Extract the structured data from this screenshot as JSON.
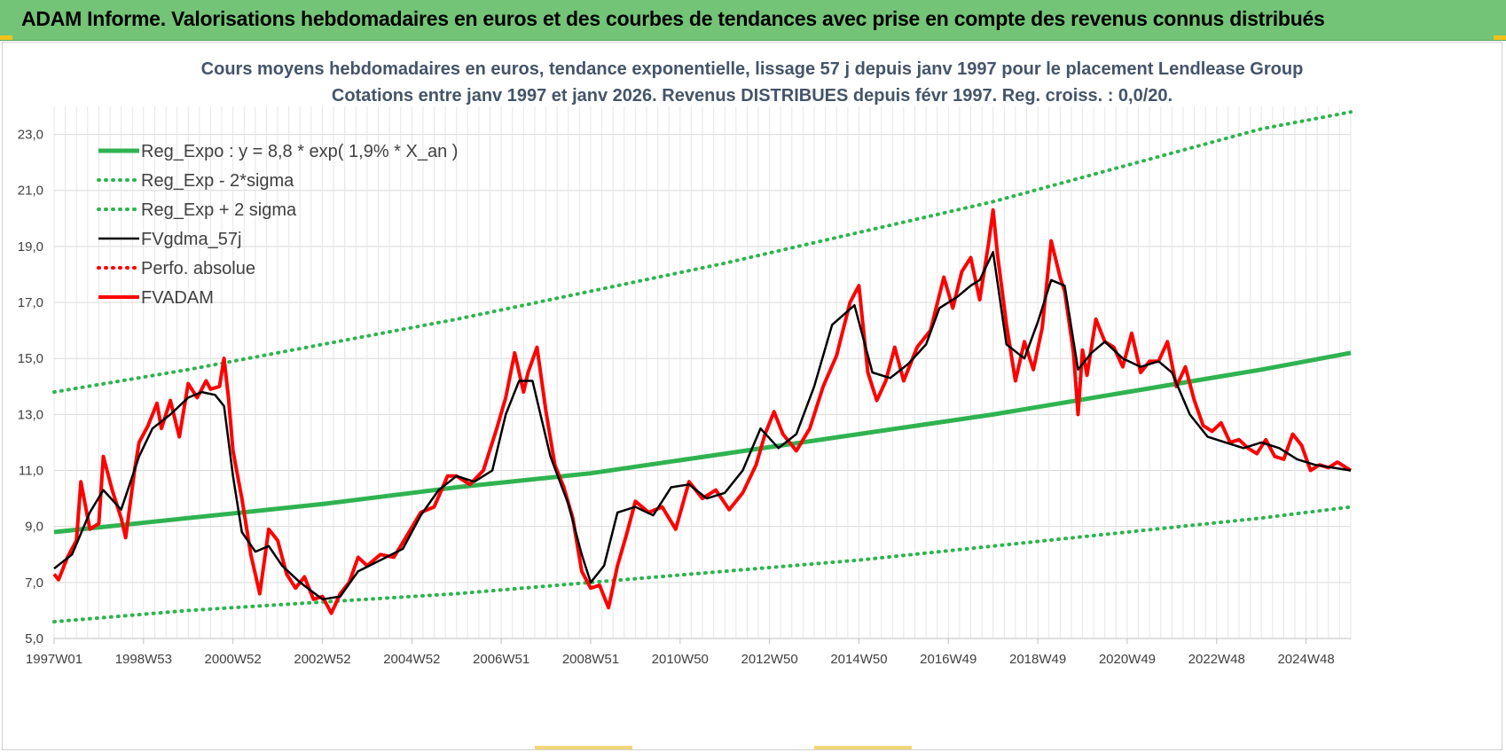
{
  "header": {
    "title": "ADAM Informe. Valorisations hebdomadaires en euros et des courbes de tendances avec prise en compte des revenus connus distribués"
  },
  "colors": {
    "header_bg": "#73c476",
    "trend_green": "#2fb350",
    "price_red": "#ff0000",
    "smoothed_black": "#000000",
    "title_text": "#44546a"
  },
  "chart_data": {
    "type": "line",
    "title": "Cours moyens hebdomadaires en euros, tendance exponentielle, lissage 57 j depuis janv 1997 pour le placement Lendlease Group",
    "subtitle": "Cotations entre janv 1997 et janv 2026. Revenus DISTRIBUES depuis févr 1997. Reg. croiss. : 0,0/20.",
    "xlabel": "",
    "ylabel": "",
    "xlim": [
      1997.0,
      2026.0
    ],
    "ylim": [
      5.0,
      24.0
    ],
    "grid": true,
    "legend_position": "top-left",
    "y_ticks": [
      "5,0",
      "7,0",
      "9,0",
      "11,0",
      "13,0",
      "15,0",
      "17,0",
      "19,0",
      "21,0",
      "23,0"
    ],
    "x_ticks": [
      {
        "label": "1997W01",
        "t": 1997.0
      },
      {
        "label": "1998W53",
        "t": 1999.0
      },
      {
        "label": "2000W52",
        "t": 2001.0
      },
      {
        "label": "2002W52",
        "t": 2003.0
      },
      {
        "label": "2004W52",
        "t": 2005.0
      },
      {
        "label": "2006W51",
        "t": 2007.0
      },
      {
        "label": "2008W51",
        "t": 2009.0
      },
      {
        "label": "2010W50",
        "t": 2011.0
      },
      {
        "label": "2012W50",
        "t": 2013.0
      },
      {
        "label": "2014W50",
        "t": 2015.0
      },
      {
        "label": "2016W49",
        "t": 2017.0
      },
      {
        "label": "2018W49",
        "t": 2019.0
      },
      {
        "label": "2020W49",
        "t": 2021.0
      },
      {
        "label": "2022W48",
        "t": 2023.0
      },
      {
        "label": "2024W48",
        "t": 2025.0
      }
    ],
    "series": [
      {
        "name": "Reg_Expo : y = 8,8 * exp( 1,9% *  X_an )",
        "style": "solid-thick",
        "color": "#2fb350",
        "x": [
          1997.0,
          2000.0,
          2003.0,
          2006.0,
          2009.0,
          2012.0,
          2015.0,
          2018.0,
          2021.0,
          2024.0,
          2026.0
        ],
        "y": [
          8.8,
          9.3,
          9.8,
          10.4,
          10.9,
          11.6,
          12.3,
          13.0,
          13.8,
          14.6,
          15.2
        ]
      },
      {
        "name": "Reg_Exp - 2*sigma",
        "style": "dotted",
        "color": "#2fb350",
        "x": [
          1997.0,
          2000.0,
          2003.0,
          2006.0,
          2009.0,
          2012.0,
          2015.0,
          2018.0,
          2021.0,
          2024.0,
          2026.0
        ],
        "y": [
          5.6,
          6.0,
          6.3,
          6.6,
          7.0,
          7.4,
          7.8,
          8.3,
          8.8,
          9.3,
          9.7
        ]
      },
      {
        "name": "Reg_Exp + 2 sigma",
        "style": "dotted",
        "color": "#2fb350",
        "x": [
          1997.0,
          2000.0,
          2003.0,
          2006.0,
          2009.0,
          2012.0,
          2015.0,
          2018.0,
          2021.0,
          2024.0,
          2026.0
        ],
        "y": [
          13.8,
          14.6,
          15.5,
          16.4,
          17.4,
          18.4,
          19.5,
          20.6,
          21.9,
          23.2,
          23.8
        ]
      },
      {
        "name": "FVgdma_57j",
        "style": "solid",
        "color": "#000000",
        "x": [
          1997.0,
          1997.4,
          1997.8,
          1998.1,
          1998.5,
          1998.9,
          1999.2,
          1999.6,
          2000.0,
          2000.3,
          2000.6,
          2000.8,
          2001.0,
          2001.2,
          2001.5,
          2001.8,
          2002.1,
          2002.5,
          2003.0,
          2003.4,
          2003.8,
          2004.3,
          2004.8,
          2005.2,
          2005.6,
          2006.0,
          2006.4,
          2006.8,
          2007.1,
          2007.4,
          2007.7,
          2008.1,
          2008.5,
          2008.8,
          2009.0,
          2009.3,
          2009.6,
          2010.0,
          2010.4,
          2010.8,
          2011.2,
          2011.6,
          2012.0,
          2012.4,
          2012.8,
          2013.2,
          2013.6,
          2014.0,
          2014.4,
          2014.9,
          2015.3,
          2015.7,
          2016.1,
          2016.5,
          2016.8,
          2017.2,
          2017.5,
          2017.7,
          2018.0,
          2018.3,
          2018.7,
          2019.0,
          2019.3,
          2019.6,
          2019.9,
          2020.2,
          2020.5,
          2020.9,
          2021.3,
          2021.7,
          2022.0,
          2022.4,
          2022.8,
          2023.2,
          2023.6,
          2024.0,
          2024.4,
          2024.8,
          2025.2,
          2025.6,
          2026.0
        ],
        "y": [
          7.5,
          8.0,
          9.5,
          10.3,
          9.6,
          11.5,
          12.5,
          13.0,
          13.6,
          13.8,
          13.7,
          13.3,
          10.8,
          8.8,
          8.1,
          8.3,
          7.6,
          7.0,
          6.4,
          6.5,
          7.4,
          7.8,
          8.2,
          9.4,
          10.3,
          10.8,
          10.6,
          11.0,
          13.0,
          14.2,
          14.2,
          11.5,
          9.8,
          8.0,
          7.0,
          7.6,
          9.5,
          9.7,
          9.4,
          10.4,
          10.5,
          10.0,
          10.2,
          11.0,
          12.5,
          11.8,
          12.3,
          14.0,
          16.2,
          16.9,
          14.5,
          14.3,
          14.8,
          15.5,
          16.8,
          17.2,
          17.6,
          17.8,
          18.8,
          15.5,
          15.0,
          16.3,
          17.8,
          17.6,
          14.6,
          15.2,
          15.6,
          15.0,
          14.7,
          14.9,
          14.5,
          13.0,
          12.2,
          12.0,
          11.8,
          12.0,
          11.8,
          11.4,
          11.2,
          11.1,
          11.0
        ]
      },
      {
        "name": "Perfo. absolue",
        "style": "dotted",
        "color": "#ff0000",
        "x": [],
        "y": []
      },
      {
        "name": "FVADAM",
        "style": "solid-thick",
        "color": "#ff0000",
        "x": [
          1997.0,
          1997.1,
          1997.3,
          1997.5,
          1997.6,
          1997.8,
          1998.0,
          1998.1,
          1998.3,
          1998.5,
          1998.6,
          1998.8,
          1998.9,
          1999.1,
          1999.3,
          1999.4,
          1999.6,
          1999.8,
          2000.0,
          2000.2,
          2000.4,
          2000.5,
          2000.7,
          2000.8,
          2000.9,
          2001.0,
          2001.2,
          2001.4,
          2001.6,
          2001.8,
          2002.0,
          2002.2,
          2002.4,
          2002.6,
          2002.8,
          2003.0,
          2003.2,
          2003.4,
          2003.6,
          2003.8,
          2004.0,
          2004.3,
          2004.6,
          2004.9,
          2005.2,
          2005.5,
          2005.8,
          2006.0,
          2006.3,
          2006.6,
          2006.9,
          2007.1,
          2007.3,
          2007.5,
          2007.6,
          2007.8,
          2008.0,
          2008.2,
          2008.4,
          2008.6,
          2008.8,
          2009.0,
          2009.2,
          2009.4,
          2009.6,
          2009.8,
          2010.0,
          2010.3,
          2010.6,
          2010.9,
          2011.2,
          2011.5,
          2011.8,
          2012.1,
          2012.4,
          2012.7,
          2012.9,
          2013.1,
          2013.3,
          2013.6,
          2013.9,
          2014.2,
          2014.5,
          2014.8,
          2015.0,
          2015.2,
          2015.4,
          2015.6,
          2015.8,
          2016.0,
          2016.3,
          2016.6,
          2016.9,
          2017.1,
          2017.3,
          2017.5,
          2017.7,
          2017.9,
          2018.0,
          2018.1,
          2018.3,
          2018.5,
          2018.7,
          2018.9,
          2019.1,
          2019.3,
          2019.5,
          2019.6,
          2019.8,
          2019.9,
          2020.0,
          2020.1,
          2020.3,
          2020.5,
          2020.7,
          2020.9,
          2021.1,
          2021.3,
          2021.5,
          2021.7,
          2021.9,
          2022.1,
          2022.3,
          2022.5,
          2022.7,
          2022.9,
          2023.1,
          2023.3,
          2023.5,
          2023.7,
          2023.9,
          2024.1,
          2024.3,
          2024.5,
          2024.7,
          2024.9,
          2025.1,
          2025.3,
          2025.5,
          2025.7,
          2026.0
        ],
        "y": [
          7.3,
          7.1,
          7.9,
          8.5,
          10.6,
          8.9,
          9.1,
          11.5,
          10.3,
          9.3,
          8.6,
          11.0,
          12.0,
          12.6,
          13.4,
          12.5,
          13.5,
          12.2,
          14.1,
          13.6,
          14.2,
          13.9,
          14.0,
          15.0,
          13.6,
          11.7,
          10.0,
          8.0,
          6.6,
          8.9,
          8.5,
          7.3,
          6.8,
          7.2,
          6.4,
          6.5,
          5.9,
          6.6,
          7.0,
          7.9,
          7.6,
          8.0,
          7.9,
          8.7,
          9.5,
          9.7,
          10.8,
          10.8,
          10.5,
          11.0,
          12.5,
          13.6,
          15.2,
          13.8,
          14.5,
          15.4,
          13.1,
          11.2,
          10.4,
          9.3,
          7.4,
          6.8,
          6.9,
          6.1,
          7.6,
          8.7,
          9.9,
          9.5,
          9.7,
          8.9,
          10.6,
          10.0,
          10.3,
          9.6,
          10.2,
          11.2,
          12.3,
          13.1,
          12.3,
          11.7,
          12.5,
          14.0,
          15.1,
          17.0,
          17.6,
          14.5,
          13.5,
          14.2,
          15.4,
          14.2,
          15.4,
          16.0,
          17.9,
          16.8,
          18.1,
          18.6,
          17.1,
          19.1,
          20.3,
          18.7,
          16.2,
          14.2,
          15.6,
          14.6,
          16.1,
          19.2,
          17.9,
          17.4,
          15.2,
          13.0,
          15.3,
          14.4,
          16.4,
          15.6,
          15.4,
          14.7,
          15.9,
          14.5,
          14.9,
          14.9,
          15.6,
          14.0,
          14.7,
          13.5,
          12.6,
          12.4,
          12.7,
          12.0,
          12.1,
          11.8,
          11.6,
          12.1,
          11.5,
          11.4,
          12.3,
          11.9,
          11.0,
          11.2,
          11.1,
          11.3,
          11.0
        ]
      }
    ]
  }
}
